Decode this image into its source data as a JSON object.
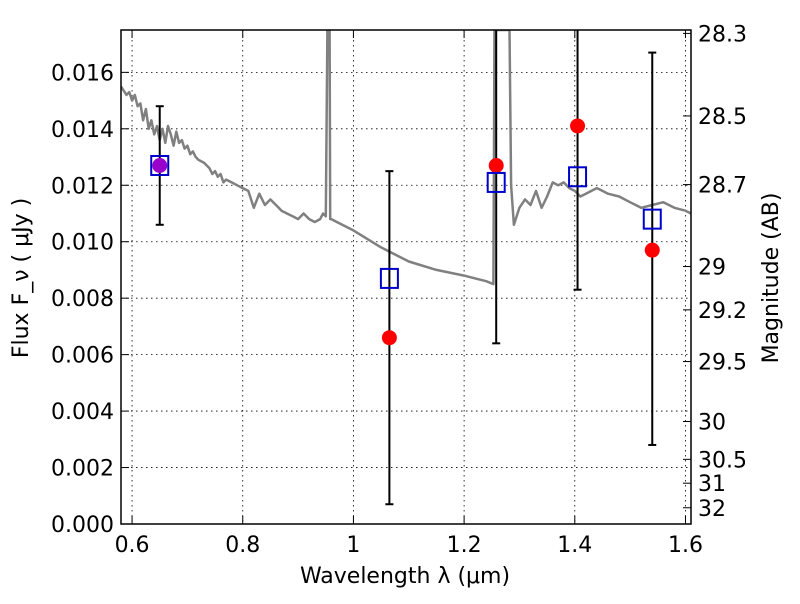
{
  "chart_data": {
    "type": "scatter",
    "xlabel": "Wavelength  λ (μm)",
    "ylabel": "Flux  F_ν  ( μJy )",
    "y2label": "Magnitude (AB)",
    "xlim": [
      0.58,
      1.61
    ],
    "ylim": [
      0.0,
      0.0175
    ],
    "grid": true,
    "x_ticks": [
      {
        "value": 0.6,
        "label": "0.6"
      },
      {
        "value": 0.8,
        "label": "0.8"
      },
      {
        "value": 1.0,
        "label": "1"
      },
      {
        "value": 1.2,
        "label": "1.2"
      },
      {
        "value": 1.4,
        "label": "1.4"
      },
      {
        "value": 1.6,
        "label": "1.6"
      }
    ],
    "y_ticks": [
      {
        "value": 0.0,
        "label": "0.000"
      },
      {
        "value": 0.002,
        "label": "0.002"
      },
      {
        "value": 0.004,
        "label": "0.004"
      },
      {
        "value": 0.006,
        "label": "0.006"
      },
      {
        "value": 0.008,
        "label": "0.008"
      },
      {
        "value": 0.01,
        "label": "0.010"
      },
      {
        "value": 0.012,
        "label": "0.012"
      },
      {
        "value": 0.014,
        "label": "0.014"
      },
      {
        "value": 0.016,
        "label": "0.016"
      }
    ],
    "y2_ticks": [
      {
        "value": 28.3,
        "label": "28.3"
      },
      {
        "value": 28.5,
        "label": "28.5"
      },
      {
        "value": 28.7,
        "label": "28.7"
      },
      {
        "value": 29.0,
        "label": "29"
      },
      {
        "value": 29.2,
        "label": "29.2"
      },
      {
        "value": 29.5,
        "label": "29.5"
      },
      {
        "value": 30.0,
        "label": "30"
      },
      {
        "value": 30.5,
        "label": "30.5"
      },
      {
        "value": 31.0,
        "label": "31"
      },
      {
        "value": 32.0,
        "label": "32"
      }
    ],
    "colors": {
      "observed": "#ff0000",
      "model": "#0000cc",
      "spectrum": "#808080",
      "overlap": "#9900cc"
    },
    "spectrum": {
      "x": [
        0.58,
        0.59,
        0.595,
        0.6,
        0.605,
        0.61,
        0.615,
        0.62,
        0.625,
        0.63,
        0.635,
        0.64,
        0.645,
        0.65,
        0.655,
        0.66,
        0.665,
        0.67,
        0.675,
        0.68,
        0.685,
        0.69,
        0.695,
        0.7,
        0.705,
        0.71,
        0.715,
        0.72,
        0.73,
        0.74,
        0.745,
        0.75,
        0.755,
        0.76,
        0.765,
        0.77,
        0.78,
        0.79,
        0.8,
        0.81,
        0.82,
        0.83,
        0.84,
        0.85,
        0.855,
        0.86,
        0.865,
        0.87,
        0.88,
        0.89,
        0.9,
        0.91,
        0.92,
        0.93,
        0.94,
        0.945,
        0.95,
        0.953,
        0.955,
        0.957,
        0.958,
        0.96,
        0.97,
        1.0,
        1.05,
        1.1,
        1.15,
        1.2,
        1.22,
        1.24,
        1.253,
        1.255,
        1.257,
        1.26,
        1.262,
        1.27,
        1.28,
        1.282,
        1.285,
        1.29,
        1.3,
        1.31,
        1.32,
        1.33,
        1.34,
        1.35,
        1.36,
        1.37,
        1.38,
        1.39,
        1.4,
        1.41,
        1.42,
        1.43,
        1.44,
        1.45,
        1.46,
        1.48,
        1.5,
        1.52,
        1.54,
        1.56,
        1.58,
        1.6,
        1.61
      ],
      "y": [
        0.0155,
        0.0152,
        0.0153,
        0.015,
        0.0152,
        0.0148,
        0.0149,
        0.0143,
        0.0147,
        0.014,
        0.0143,
        0.0138,
        0.0141,
        0.0136,
        0.014,
        0.0135,
        0.0141,
        0.0138,
        0.0134,
        0.0139,
        0.0135,
        0.0136,
        0.0133,
        0.0134,
        0.0131,
        0.0132,
        0.013,
        0.0129,
        0.0128,
        0.0126,
        0.0124,
        0.0125,
        0.0123,
        0.0124,
        0.0121,
        0.0122,
        0.0121,
        0.012,
        0.0119,
        0.0118,
        0.0112,
        0.0117,
        0.0113,
        0.0115,
        0.0114,
        0.0113,
        0.0112,
        0.0111,
        0.011,
        0.0109,
        0.0108,
        0.011,
        0.0108,
        0.0107,
        0.0108,
        0.011,
        0.0109,
        0.0175,
        0.0175,
        0.0175,
        0.0108,
        0.0108,
        0.0107,
        0.0104,
        0.0098,
        0.0093,
        0.009,
        0.0088,
        0.0087,
        0.0086,
        0.0085,
        0.0175,
        0.0175,
        0.0175,
        0.0175,
        0.0175,
        0.0175,
        0.0175,
        0.012,
        0.0106,
        0.0112,
        0.0115,
        0.0113,
        0.0118,
        0.0112,
        0.0116,
        0.0121,
        0.012,
        0.0121,
        0.0119,
        0.0118,
        0.0116,
        0.0117,
        0.0118,
        0.0119,
        0.0118,
        0.0117,
        0.0116,
        0.0114,
        0.0112,
        0.0113,
        0.0114,
        0.0112,
        0.0111,
        0.011
      ]
    },
    "series": [
      {
        "marker": "circle",
        "x": [
          0.65,
          1.065,
          1.258,
          1.405,
          1.54
        ],
        "y": [
          0.0127,
          0.0066,
          0.0127,
          0.0141,
          0.0097
        ],
        "yerr_low": [
          0.0106,
          0.0007,
          0.0064,
          0.0083,
          0.0028
        ],
        "yerr_high": [
          0.0148,
          0.0125,
          0.0175,
          0.0175,
          0.0167
        ]
      },
      {
        "marker": "open-square",
        "x": [
          0.65,
          1.065,
          1.258,
          1.405,
          1.54
        ],
        "y": [
          0.0127,
          0.0087,
          0.0121,
          0.0123,
          0.0108
        ]
      }
    ]
  }
}
